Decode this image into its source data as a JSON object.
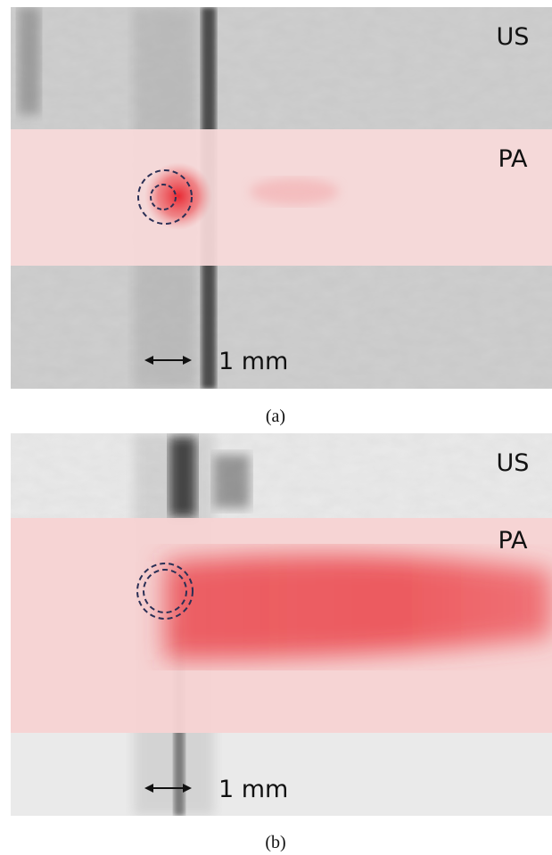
{
  "panels": [
    {
      "labels": {
        "top": "US",
        "band": "PA",
        "scale": "1 mm"
      },
      "caption": "(a)"
    },
    {
      "labels": {
        "top": "US",
        "band": "PA",
        "scale": "1 mm"
      },
      "caption": "(b)"
    }
  ]
}
